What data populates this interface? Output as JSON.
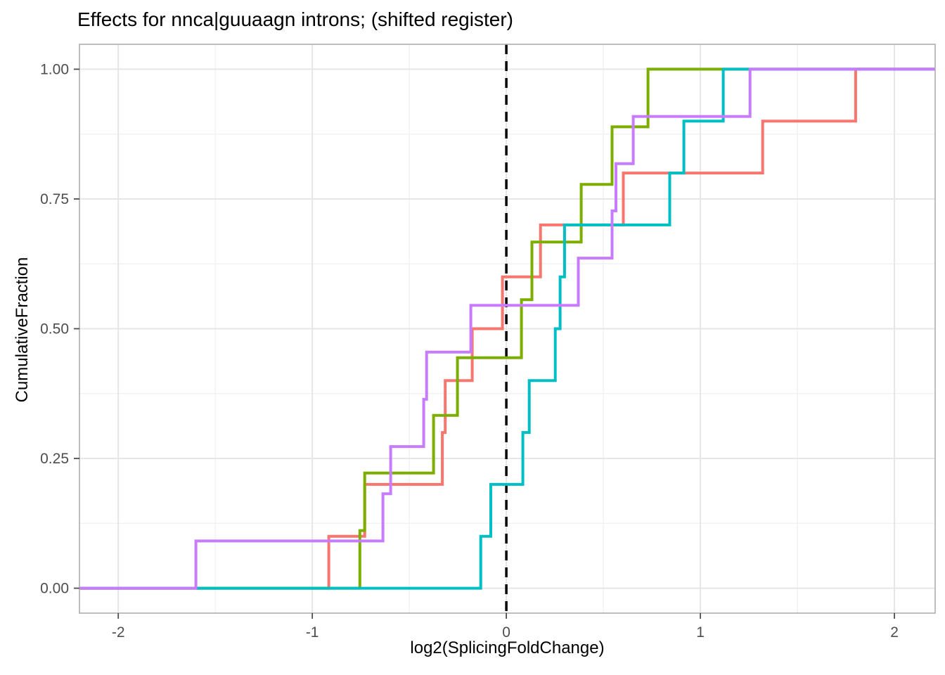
{
  "figure": {
    "background": "#ffffff"
  },
  "chart_data": {
    "type": "line",
    "subtype": "ecdf-step",
    "title": "Effects for nnca|guuaagn introns; (shifted register)",
    "xlabel": "log2(SplicingFoldChange)",
    "ylabel": "CumulativeFraction",
    "xlim": [
      -2.2,
      2.21
    ],
    "ylim": [
      -0.048,
      1.048
    ],
    "x_major_ticks": [
      -2,
      -1,
      0,
      1,
      2
    ],
    "x_tick_labels": [
      "-2",
      "-1",
      "0",
      "1",
      "2"
    ],
    "x_minor_ticks": [
      -1.5,
      -0.5,
      0.5,
      1.5
    ],
    "y_major_ticks": [
      0,
      0.25,
      0.5,
      0.75,
      1
    ],
    "y_tick_labels": [
      "0.00",
      "0.25",
      "0.50",
      "0.75",
      "1.00"
    ],
    "y_minor_ticks": [
      0.125,
      0.375,
      0.625,
      0.875
    ],
    "grid": true,
    "legend": "none",
    "reference_line": {
      "x": 0,
      "style": "dashed",
      "color": "#000000"
    },
    "style": {
      "major_grid_color": "#e6e6e6",
      "minor_grid_color": "#f2f2f2",
      "panel_border_color": "#adadad",
      "tick_color": "#4d4d4d",
      "line_width": 4
    },
    "series": [
      {
        "name": "salmon",
        "color": "#F8766D",
        "n_points": 10,
        "jumps": [
          [
            -0.915,
            0.1
          ],
          [
            -0.73,
            0.2
          ],
          [
            -0.33,
            0.3
          ],
          [
            -0.315,
            0.4
          ],
          [
            -0.176,
            0.5
          ],
          [
            -0.02,
            0.6
          ],
          [
            0.176,
            0.7
          ],
          [
            0.603,
            0.8
          ],
          [
            1.321,
            0.9
          ],
          [
            1.8,
            1.0
          ]
        ]
      },
      {
        "name": "green",
        "color": "#7CAE00",
        "n_points": 9,
        "jumps": [
          [
            -0.755,
            0.111
          ],
          [
            -0.73,
            0.222
          ],
          [
            -0.375,
            0.333
          ],
          [
            -0.252,
            0.444
          ],
          [
            0.078,
            0.556
          ],
          [
            0.132,
            0.667
          ],
          [
            0.386,
            0.778
          ],
          [
            0.545,
            0.889
          ],
          [
            0.73,
            1.0
          ]
        ]
      },
      {
        "name": "teal",
        "color": "#00BFC4",
        "n_points": 10,
        "jumps": [
          [
            -0.132,
            0.1
          ],
          [
            -0.08,
            0.2
          ],
          [
            0.085,
            0.3
          ],
          [
            0.118,
            0.4
          ],
          [
            0.252,
            0.5
          ],
          [
            0.277,
            0.6
          ],
          [
            0.3,
            0.7
          ],
          [
            0.842,
            0.8
          ],
          [
            0.915,
            0.9
          ],
          [
            1.118,
            1.0
          ]
        ]
      },
      {
        "name": "purple",
        "color": "#C77CFF",
        "n_points": 11,
        "jumps": [
          [
            -1.6,
            0.091
          ],
          [
            -0.636,
            0.182
          ],
          [
            -0.596,
            0.273
          ],
          [
            -0.426,
            0.364
          ],
          [
            -0.411,
            0.455
          ],
          [
            -0.183,
            0.545
          ],
          [
            0.371,
            0.636
          ],
          [
            0.545,
            0.727
          ],
          [
            0.565,
            0.818
          ],
          [
            0.654,
            0.909
          ],
          [
            1.256,
            1.0
          ]
        ]
      }
    ]
  }
}
